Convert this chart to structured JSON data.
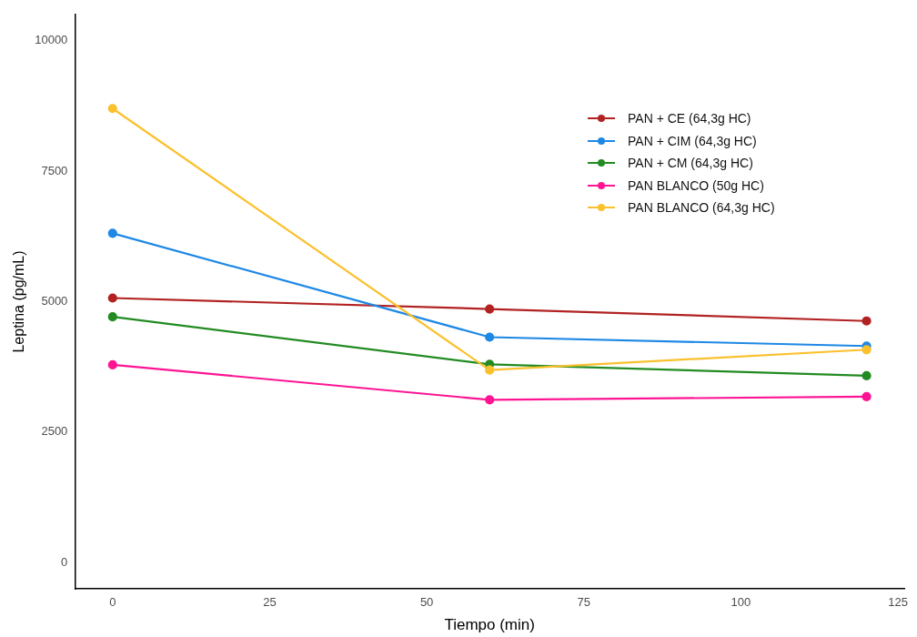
{
  "chart_data": {
    "type": "line",
    "xlabel": "Tiempo (min)",
    "ylabel": "Leptina (pg/mL)",
    "x": [
      0,
      60,
      120
    ],
    "series": [
      {
        "name": "PAN + CE (64,3g HC)",
        "color": "#b22222",
        "values": [
          5070,
          4860,
          4630
        ]
      },
      {
        "name": "PAN + CIM (64,3g HC)",
        "color": "#1e88e5",
        "values": [
          6310,
          4320,
          4150
        ]
      },
      {
        "name": "PAN + CM (64,3g HC)",
        "color": "#228b22",
        "values": [
          4710,
          3800,
          3580
        ]
      },
      {
        "name": "PAN BLANCO (50g HC)",
        "color": "#ff1493",
        "values": [
          3790,
          3120,
          3180
        ]
      },
      {
        "name": "PAN BLANCO (64,3g HC)",
        "color": "#fbc02d",
        "values": [
          8700,
          3690,
          4080
        ]
      }
    ],
    "xlim": [
      -6,
      126
    ],
    "xticks": [
      0,
      25,
      50,
      75,
      100,
      125
    ],
    "ylim": [
      -500,
      10500
    ],
    "yticks": [
      0,
      2500,
      5000,
      7500,
      10000
    ],
    "grid": false,
    "legend": "top right",
    "marker": "circle",
    "line_style": "solid"
  }
}
